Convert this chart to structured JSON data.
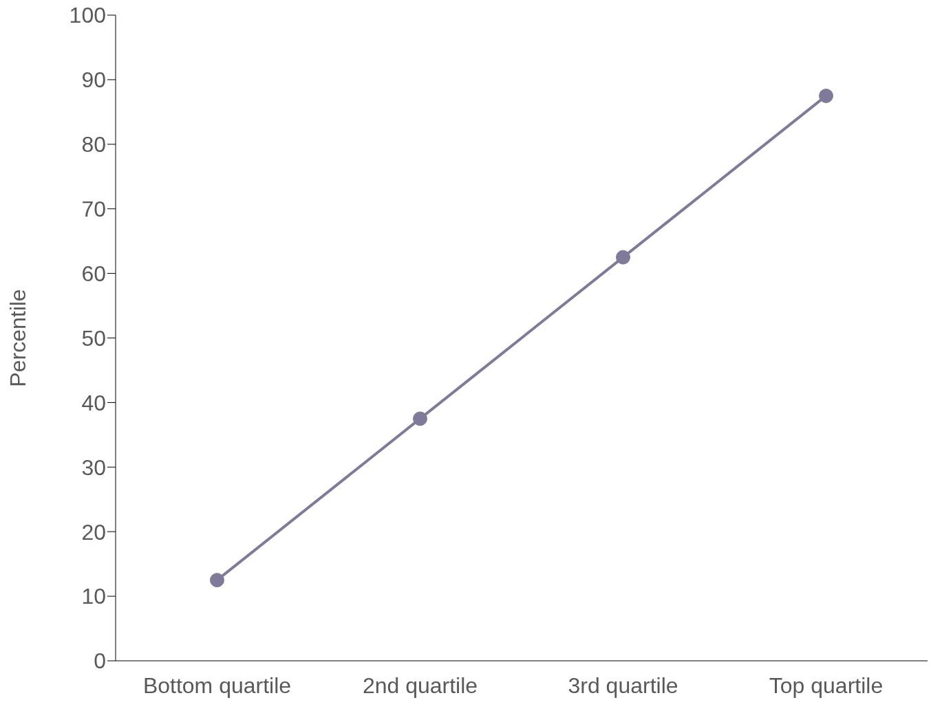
{
  "chart_data": {
    "type": "line",
    "ylabel": "Percentile",
    "categories": [
      "Bottom quartile",
      "2nd quartile",
      "3rd quartile",
      "Top quartile"
    ],
    "series": [
      {
        "color": "#7f7a9a",
        "values": [
          12.5,
          37.5,
          62.5,
          87.5
        ]
      }
    ],
    "ylim": [
      0,
      100
    ],
    "yticks": [
      0,
      10,
      20,
      30,
      40,
      50,
      60,
      70,
      80,
      90,
      100
    ],
    "grid": false,
    "legend": false,
    "marker": "circle",
    "line_style": "solid"
  }
}
